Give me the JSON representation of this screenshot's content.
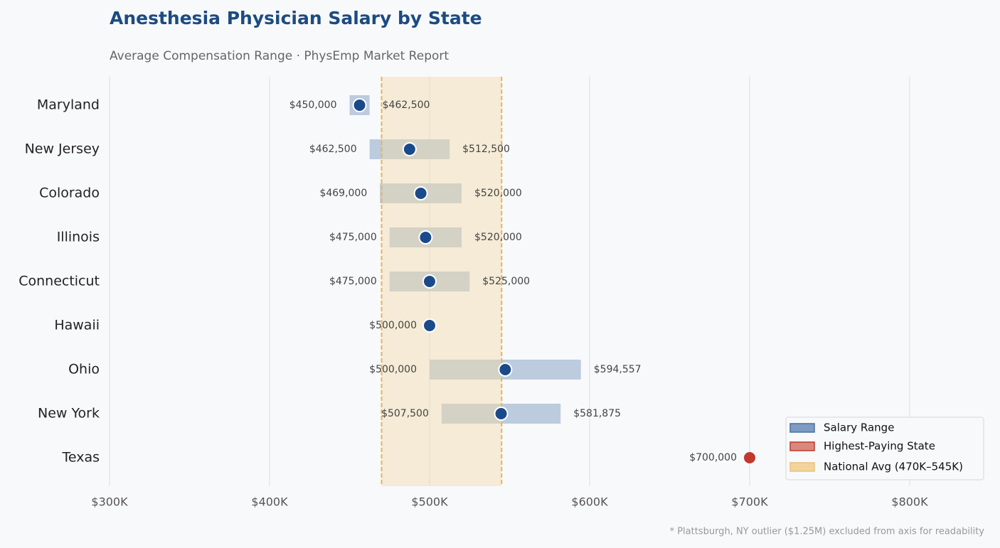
{
  "chart_data": {
    "type": "range",
    "title": "Anesthesia Physician Salary by State",
    "subtitle": "Average Compensation Range · PhysEmp Market Report",
    "footnote": "* Plattsburgh, NY outlier ($1.25M) excluded from axis for readability",
    "categories": [
      "Maryland",
      "New Jersey",
      "Colorado",
      "Illinois",
      "Connecticut",
      "Hawaii",
      "Ohio",
      "New York",
      "Texas"
    ],
    "low": [
      450000,
      462500,
      469000,
      475000,
      475000,
      500000,
      500000,
      507500,
      700000
    ],
    "low_labels": [
      "$450,000",
      "$462,500",
      "$469,000",
      "$475,000",
      "$475,000",
      "$500,000",
      "$500,000",
      "$507,500",
      "$700,000"
    ],
    "high": [
      462500,
      512500,
      520000,
      520000,
      525000,
      null,
      594557,
      581875,
      null
    ],
    "high_labels": [
      "$462,500",
      "$512,500",
      "$520,000",
      "$520,000",
      "$525,000",
      null,
      "$594,557",
      "$581,875",
      null
    ],
    "average": [
      456250,
      487500,
      494500,
      497500,
      500000,
      500000,
      547279,
      544688,
      700000
    ],
    "highlight_category": "Texas",
    "reference_band": [
      470000,
      545000
    ],
    "colors": {
      "range": "#bccbdd",
      "dot": "#1a4a8a",
      "highlight": "#c0392b",
      "band": "#f2d9a8",
      "band_line": "#e8b456"
    },
    "legend": [
      "Salary Range",
      "Highest-Paying State",
      "National Avg (470K–545K)"
    ],
    "legend_position": "lower right",
    "xlim": [
      300000,
      850000
    ],
    "xticks": [
      {
        "value": 300000,
        "label": "$300K"
      },
      {
        "value": 400000,
        "label": "$400K"
      },
      {
        "value": 500000,
        "label": "$500K"
      },
      {
        "value": 600000,
        "label": "$600K"
      },
      {
        "value": 700000,
        "label": "$700K"
      },
      {
        "value": 800000,
        "label": "$800K"
      }
    ],
    "grid": true
  }
}
